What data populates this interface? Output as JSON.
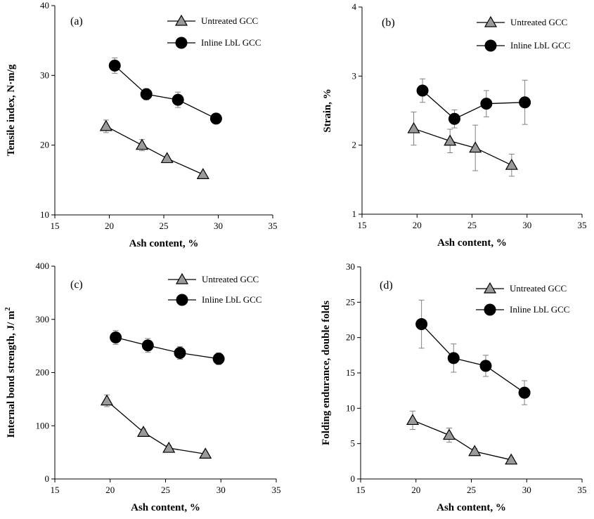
{
  "chart_data": [
    {
      "type": "line",
      "panel_label": "(a)",
      "title": "",
      "xlabel": "Ash content, %",
      "ylabel": "Tensile index, N·m/g",
      "xlim": [
        15,
        35
      ],
      "ylim": [
        10,
        40
      ],
      "xticks": [
        15,
        20,
        25,
        30,
        35
      ],
      "yticks": [
        10,
        20,
        30,
        40
      ],
      "legend_position": "top-right",
      "series": [
        {
          "name": "Untreated GCC",
          "marker": "triangle",
          "x": [
            19.7,
            23.0,
            25.3,
            28.6
          ],
          "y": [
            22.7,
            20.0,
            18.1,
            15.8
          ],
          "err": [
            0.9,
            0.8,
            0,
            0
          ]
        },
        {
          "name": "Inline LbL GCC",
          "marker": "circle",
          "x": [
            20.5,
            23.4,
            26.3,
            29.8
          ],
          "y": [
            31.4,
            27.3,
            26.5,
            23.8
          ],
          "err": [
            1.1,
            0.8,
            1.1,
            0.6
          ]
        }
      ]
    },
    {
      "type": "line",
      "panel_label": "(b)",
      "title": "",
      "xlabel": "Ash content, %",
      "ylabel": "Strain, %",
      "xlim": [
        15,
        35
      ],
      "ylim": [
        1,
        4
      ],
      "xticks": [
        15,
        20,
        25,
        30,
        35
      ],
      "yticks": [
        1,
        2,
        3,
        4
      ],
      "legend_position": "top-right",
      "series": [
        {
          "name": "Untreated GCC",
          "marker": "triangle",
          "x": [
            19.7,
            23.0,
            25.3,
            28.6
          ],
          "y": [
            2.24,
            2.06,
            1.96,
            1.71
          ],
          "err": [
            0.24,
            0.17,
            0.33,
            0.16
          ]
        },
        {
          "name": "Inline LbL GCC",
          "marker": "circle",
          "x": [
            20.5,
            23.4,
            26.3,
            29.8
          ],
          "y": [
            2.79,
            2.38,
            2.6,
            2.62
          ],
          "err": [
            0.17,
            0.13,
            0.19,
            0.32
          ]
        }
      ]
    },
    {
      "type": "line",
      "panel_label": "(c)",
      "title": "",
      "xlabel": "Ash content, %",
      "ylabel": "Internal bond strength, J/ m",
      "ylabel_superscript": "2",
      "xlim": [
        15,
        35
      ],
      "ylim": [
        0,
        400
      ],
      "xticks": [
        15,
        20,
        25,
        30,
        35
      ],
      "yticks": [
        0,
        100,
        200,
        300,
        400
      ],
      "legend_position": "top-right",
      "series": [
        {
          "name": "Untreated GCC",
          "marker": "triangle",
          "x": [
            19.7,
            23.0,
            25.3,
            28.6
          ],
          "y": [
            147,
            88,
            58,
            47
          ],
          "err": [
            11,
            6,
            5,
            4
          ]
        },
        {
          "name": "Inline LbL GCC",
          "marker": "circle",
          "x": [
            20.5,
            23.4,
            26.3,
            29.8
          ],
          "y": [
            266,
            251,
            237,
            226
          ],
          "err": [
            13,
            13,
            12,
            11
          ]
        }
      ]
    },
    {
      "type": "line",
      "panel_label": "(d)",
      "title": "",
      "xlabel": "Ash content, %",
      "ylabel": "Folding endurance, double folds",
      "xlim": [
        15,
        35
      ],
      "ylim": [
        0,
        30
      ],
      "xticks": [
        15,
        20,
        25,
        30,
        35
      ],
      "yticks": [
        0,
        5,
        10,
        15,
        20,
        25,
        30
      ],
      "legend_position": "top-right",
      "series": [
        {
          "name": "Untreated GCC",
          "marker": "triangle",
          "x": [
            19.7,
            23.0,
            25.3,
            28.6
          ],
          "y": [
            8.3,
            6.2,
            3.9,
            2.7
          ],
          "err": [
            1.3,
            1.0,
            0.4,
            0.3
          ]
        },
        {
          "name": "Inline LbL GCC",
          "marker": "circle",
          "x": [
            20.5,
            23.4,
            26.3,
            29.8
          ],
          "y": [
            21.9,
            17.1,
            16.0,
            12.2
          ],
          "err": [
            3.4,
            2.0,
            1.5,
            1.7
          ]
        }
      ]
    }
  ],
  "colors": {
    "triangle_fill": "#9a9a9a",
    "circle_fill": "#000000",
    "line": "#000000",
    "error_bar": "#808080"
  }
}
